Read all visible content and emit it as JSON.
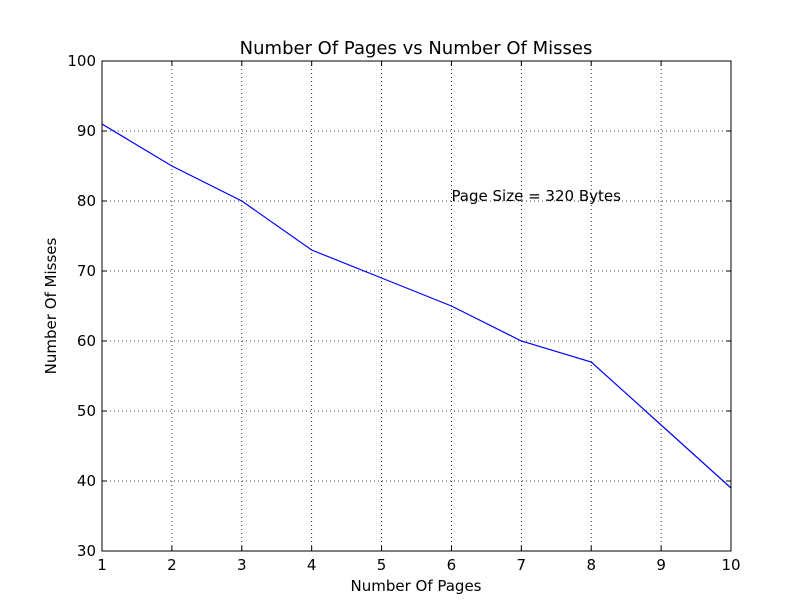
{
  "chart_data": {
    "type": "line",
    "title": "Number Of Pages vs Number Of Misses",
    "xlabel": "Number Of Pages",
    "ylabel": "Number Of Misses",
    "xlim": [
      1,
      10
    ],
    "ylim": [
      30,
      100
    ],
    "x_ticks": [
      1,
      2,
      3,
      4,
      5,
      6,
      7,
      8,
      9,
      10
    ],
    "y_ticks": [
      30,
      40,
      50,
      60,
      70,
      80,
      90,
      100
    ],
    "grid": true,
    "series": [
      {
        "color": "#0000ff",
        "x": [
          1,
          2,
          3,
          4,
          5,
          6,
          7,
          8,
          9,
          10
        ],
        "y": [
          91,
          85,
          80,
          73,
          69,
          65,
          60,
          57,
          48,
          39
        ]
      }
    ],
    "annotation": {
      "text": "Page Size = 320 Bytes",
      "x": 6,
      "y": 80
    }
  }
}
